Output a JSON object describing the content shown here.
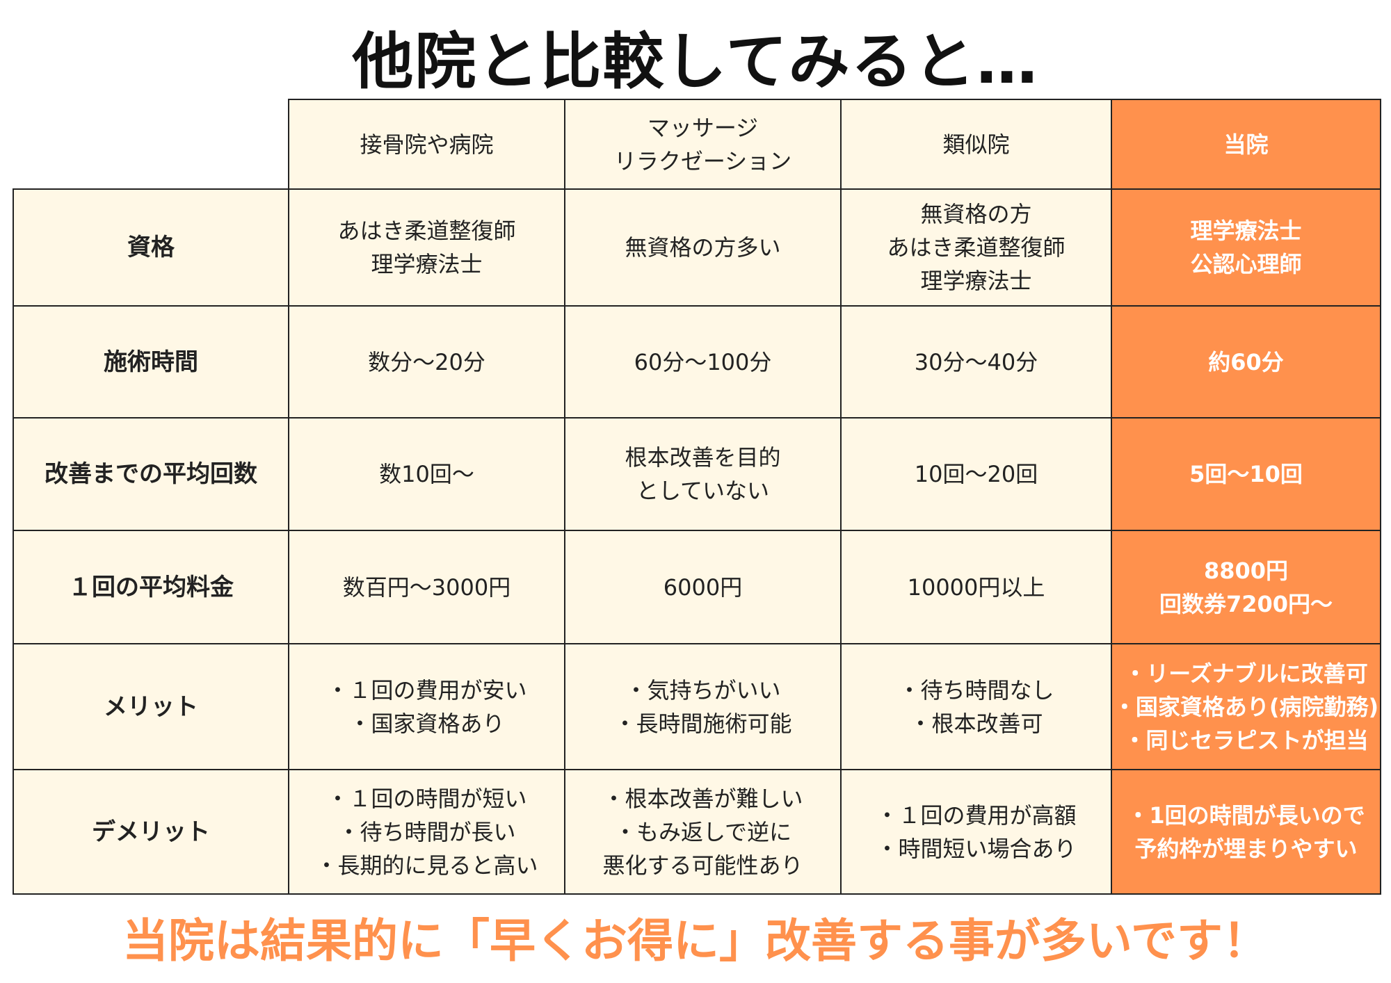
{
  "title": "他院と比較してみると…",
  "colors": {
    "cream": "#fff8e6",
    "accent": "#ff914d"
  },
  "columns": [
    [
      "接骨院や病院"
    ],
    [
      "マッサージ",
      "リラクゼーション"
    ],
    [
      "類似院"
    ],
    [
      "当院"
    ]
  ],
  "rows": [
    {
      "label": "資格",
      "cells": [
        [
          "あはき柔道整復師",
          "理学療法士"
        ],
        [
          "無資格の方多い"
        ],
        [
          "無資格の方",
          "あはき柔道整復師",
          "理学療法士"
        ],
        [
          "理学療法士",
          "公認心理師"
        ]
      ]
    },
    {
      "label": "施術時間",
      "cells": [
        [
          "数分〜20分"
        ],
        [
          "60分〜100分"
        ],
        [
          "30分〜40分"
        ],
        [
          "約60分"
        ]
      ]
    },
    {
      "label": "改善までの平均回数",
      "cells": [
        [
          "数10回〜"
        ],
        [
          "根本改善を目的",
          "としていない"
        ],
        [
          "10回〜20回"
        ],
        [
          "5回〜10回"
        ]
      ]
    },
    {
      "label": "１回の平均料金",
      "cells": [
        [
          "数百円〜3000円"
        ],
        [
          "6000円"
        ],
        [
          "10000円以上"
        ],
        [
          "8800円",
          "回数券7200円〜"
        ]
      ]
    },
    {
      "label": "メリット",
      "cells": [
        [
          "・１回の費用が安い",
          "・国家資格あり"
        ],
        [
          "・気持ちがいい",
          "・長時間施術可能"
        ],
        [
          "・待ち時間なし",
          "・根本改善可"
        ],
        [
          "・リーズナブルに改善可",
          "・国家資格あり(病院勤務)",
          "・同じセラピストが担当"
        ]
      ]
    },
    {
      "label": "デメリット",
      "cells": [
        [
          "・１回の時間が短い",
          "・待ち時間が長い",
          "・長期的に見ると高い"
        ],
        [
          "・根本改善が難しい",
          "・もみ返しで逆に",
          "悪化する可能性あり"
        ],
        [
          "・１回の費用が高額",
          "・時間短い場合あり"
        ],
        [
          "・1回の時間が長いので",
          "予約枠が埋まりやすい"
        ]
      ]
    }
  ],
  "footer": "当院は結果的に「早くお得に」改善する事が多いです！"
}
